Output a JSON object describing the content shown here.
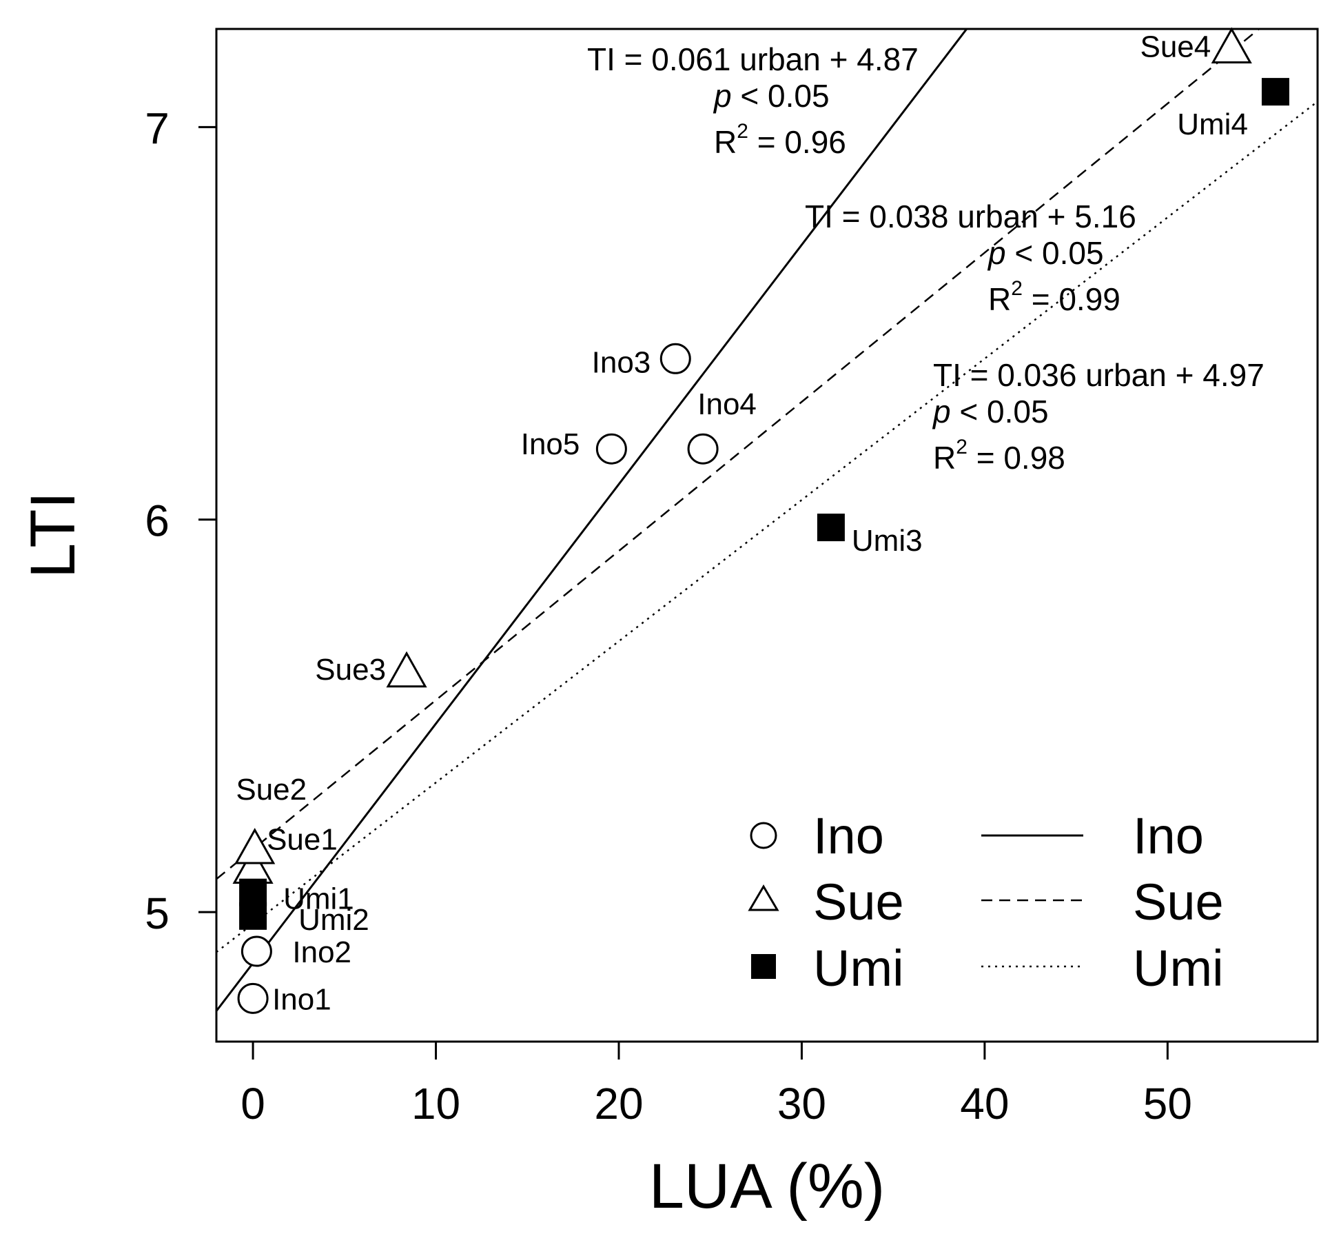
{
  "chart_data": {
    "type": "scatter",
    "title": "",
    "xlabel": "LUA (%)",
    "ylabel": "LTI",
    "xlim": [
      -2,
      58.2
    ],
    "ylim": [
      4.67,
      7.25
    ],
    "x_ticks": [
      0,
      10,
      20,
      30,
      40,
      50
    ],
    "y_ticks": [
      5,
      6,
      7
    ],
    "grid": false,
    "legend_position": "bottom-right",
    "series": [
      {
        "name": "Ino",
        "marker": "circle",
        "line_style": "solid",
        "points": [
          {
            "label": "Ino1",
            "x": 0.0,
            "y": 4.78
          },
          {
            "label": "Ino2",
            "x": 0.2,
            "y": 4.9
          },
          {
            "label": "Ino3",
            "x": 23.1,
            "y": 6.41
          },
          {
            "label": "Ino4",
            "x": 24.6,
            "y": 6.18
          },
          {
            "label": "Ino5",
            "x": 19.6,
            "y": 6.18
          }
        ],
        "fit": {
          "slope": 0.061,
          "intercept": 4.87,
          "x_range": [
            -2,
            39.6
          ],
          "equation": "TI = 0.061 urban + 4.87",
          "p": "< 0.05",
          "r2": "= 0.96"
        }
      },
      {
        "name": "Sue",
        "marker": "triangle",
        "line_style": "dashed",
        "points": [
          {
            "label": "Sue1",
            "x": 0.0,
            "y": 5.11
          },
          {
            "label": "Sue2",
            "x": 0.1,
            "y": 5.16
          },
          {
            "label": "Sue3",
            "x": 8.4,
            "y": 5.61
          },
          {
            "label": "Sue4",
            "x": 53.5,
            "y": 7.2
          }
        ],
        "fit": {
          "slope": 0.038,
          "intercept": 5.16,
          "x_range": [
            -2,
            58.2
          ],
          "equation": "TI = 0.038 urban + 5.16",
          "p": "< 0.05",
          "r2": "= 0.99"
        }
      },
      {
        "name": "Umi",
        "marker": "square",
        "line_style": "dotted",
        "points": [
          {
            "label": "Umi1",
            "x": 0.0,
            "y": 5.05
          },
          {
            "label": "Umi2",
            "x": 0.0,
            "y": 4.99
          },
          {
            "label": "Umi3",
            "x": 31.6,
            "y": 5.98
          },
          {
            "label": "Umi4",
            "x": 55.9,
            "y": 7.09
          }
        ],
        "fit": {
          "slope": 0.036,
          "intercept": 4.97,
          "x_range": [
            -2,
            58.2
          ],
          "equation": "TI = 0.036 urban + 4.97",
          "p": "< 0.05",
          "r2": "= 0.98"
        }
      }
    ],
    "legend": {
      "markers": [
        "Ino",
        "Sue",
        "Umi"
      ],
      "lines": [
        "Ino",
        "Sue",
        "Umi"
      ]
    }
  }
}
